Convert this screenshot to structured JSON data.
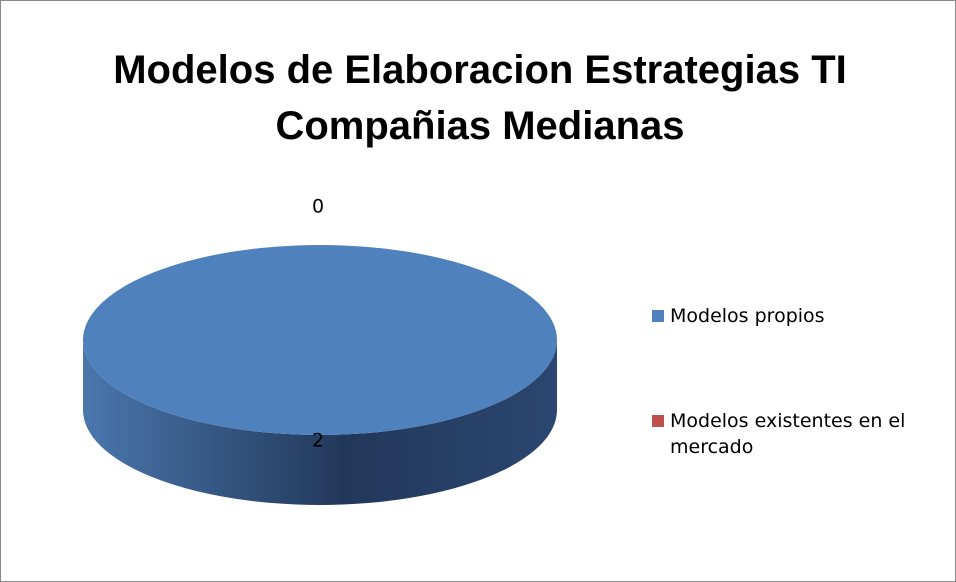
{
  "chart_data": {
    "type": "pie3d",
    "title": "Modelos de Elaboracion Estrategias TI Compañias Medianas",
    "categories": [
      "Modelos propios",
      "Modelos existentes en el mercado"
    ],
    "values": [
      2,
      0
    ],
    "colors": [
      "#4f81bd",
      "#c0504d"
    ],
    "legend": "right"
  }
}
